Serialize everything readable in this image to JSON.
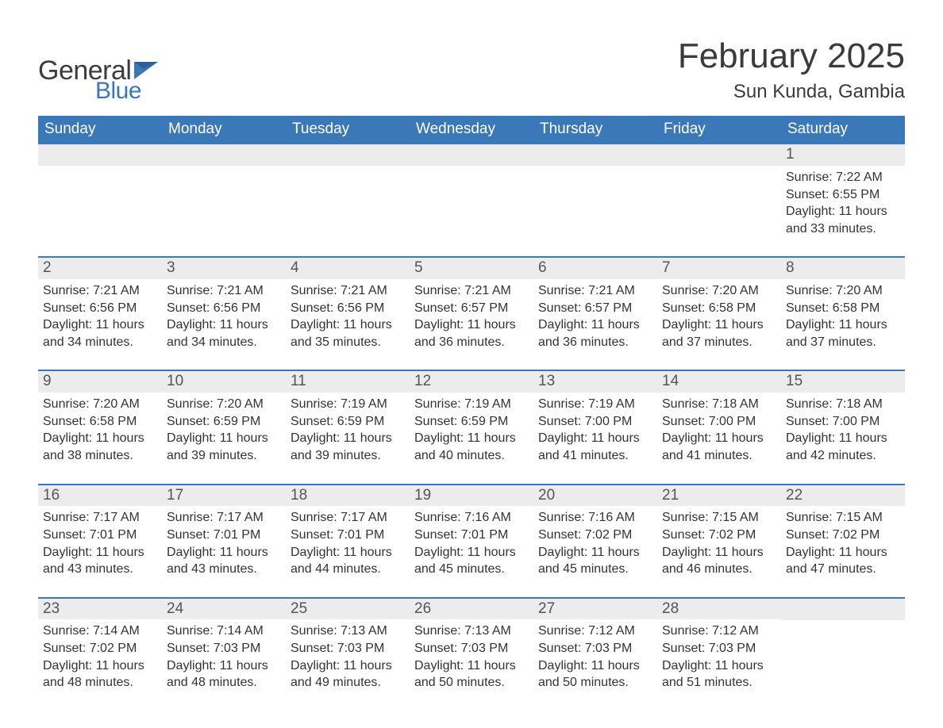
{
  "logo": {
    "text_left": "General",
    "text_right": "Blue",
    "flag_color": "#3a78b8",
    "text_left_color": "#3b3b3b",
    "text_right_color": "#3a78b8"
  },
  "title": "February 2025",
  "location": "Sun Kunda, Gambia",
  "colors": {
    "header_bar": "#3a78b8",
    "header_text": "#ffffff",
    "row_separator": "#3a78b8",
    "date_strip_bg": "#ececec",
    "date_text": "#555555",
    "body_text": "#333333",
    "page_bg": "#ffffff"
  },
  "typography": {
    "title_fontsize_pt": 33,
    "location_fontsize_pt": 18,
    "dow_fontsize_pt": 14,
    "date_fontsize_pt": 14,
    "body_fontsize_pt": 12,
    "font_family": "Helvetica"
  },
  "days_of_week": [
    "Sunday",
    "Monday",
    "Tuesday",
    "Wednesday",
    "Thursday",
    "Friday",
    "Saturday"
  ],
  "leading_blanks": 6,
  "days": [
    {
      "n": "1",
      "sunrise": "Sunrise: 7:22 AM",
      "sunset": "Sunset: 6:55 PM",
      "daylight": "Daylight: 11 hours and 33 minutes."
    },
    {
      "n": "2",
      "sunrise": "Sunrise: 7:21 AM",
      "sunset": "Sunset: 6:56 PM",
      "daylight": "Daylight: 11 hours and 34 minutes."
    },
    {
      "n": "3",
      "sunrise": "Sunrise: 7:21 AM",
      "sunset": "Sunset: 6:56 PM",
      "daylight": "Daylight: 11 hours and 34 minutes."
    },
    {
      "n": "4",
      "sunrise": "Sunrise: 7:21 AM",
      "sunset": "Sunset: 6:56 PM",
      "daylight": "Daylight: 11 hours and 35 minutes."
    },
    {
      "n": "5",
      "sunrise": "Sunrise: 7:21 AM",
      "sunset": "Sunset: 6:57 PM",
      "daylight": "Daylight: 11 hours and 36 minutes."
    },
    {
      "n": "6",
      "sunrise": "Sunrise: 7:21 AM",
      "sunset": "Sunset: 6:57 PM",
      "daylight": "Daylight: 11 hours and 36 minutes."
    },
    {
      "n": "7",
      "sunrise": "Sunrise: 7:20 AM",
      "sunset": "Sunset: 6:58 PM",
      "daylight": "Daylight: 11 hours and 37 minutes."
    },
    {
      "n": "8",
      "sunrise": "Sunrise: 7:20 AM",
      "sunset": "Sunset: 6:58 PM",
      "daylight": "Daylight: 11 hours and 37 minutes."
    },
    {
      "n": "9",
      "sunrise": "Sunrise: 7:20 AM",
      "sunset": "Sunset: 6:58 PM",
      "daylight": "Daylight: 11 hours and 38 minutes."
    },
    {
      "n": "10",
      "sunrise": "Sunrise: 7:20 AM",
      "sunset": "Sunset: 6:59 PM",
      "daylight": "Daylight: 11 hours and 39 minutes."
    },
    {
      "n": "11",
      "sunrise": "Sunrise: 7:19 AM",
      "sunset": "Sunset: 6:59 PM",
      "daylight": "Daylight: 11 hours and 39 minutes."
    },
    {
      "n": "12",
      "sunrise": "Sunrise: 7:19 AM",
      "sunset": "Sunset: 6:59 PM",
      "daylight": "Daylight: 11 hours and 40 minutes."
    },
    {
      "n": "13",
      "sunrise": "Sunrise: 7:19 AM",
      "sunset": "Sunset: 7:00 PM",
      "daylight": "Daylight: 11 hours and 41 minutes."
    },
    {
      "n": "14",
      "sunrise": "Sunrise: 7:18 AM",
      "sunset": "Sunset: 7:00 PM",
      "daylight": "Daylight: 11 hours and 41 minutes."
    },
    {
      "n": "15",
      "sunrise": "Sunrise: 7:18 AM",
      "sunset": "Sunset: 7:00 PM",
      "daylight": "Daylight: 11 hours and 42 minutes."
    },
    {
      "n": "16",
      "sunrise": "Sunrise: 7:17 AM",
      "sunset": "Sunset: 7:01 PM",
      "daylight": "Daylight: 11 hours and 43 minutes."
    },
    {
      "n": "17",
      "sunrise": "Sunrise: 7:17 AM",
      "sunset": "Sunset: 7:01 PM",
      "daylight": "Daylight: 11 hours and 43 minutes."
    },
    {
      "n": "18",
      "sunrise": "Sunrise: 7:17 AM",
      "sunset": "Sunset: 7:01 PM",
      "daylight": "Daylight: 11 hours and 44 minutes."
    },
    {
      "n": "19",
      "sunrise": "Sunrise: 7:16 AM",
      "sunset": "Sunset: 7:01 PM",
      "daylight": "Daylight: 11 hours and 45 minutes."
    },
    {
      "n": "20",
      "sunrise": "Sunrise: 7:16 AM",
      "sunset": "Sunset: 7:02 PM",
      "daylight": "Daylight: 11 hours and 45 minutes."
    },
    {
      "n": "21",
      "sunrise": "Sunrise: 7:15 AM",
      "sunset": "Sunset: 7:02 PM",
      "daylight": "Daylight: 11 hours and 46 minutes."
    },
    {
      "n": "22",
      "sunrise": "Sunrise: 7:15 AM",
      "sunset": "Sunset: 7:02 PM",
      "daylight": "Daylight: 11 hours and 47 minutes."
    },
    {
      "n": "23",
      "sunrise": "Sunrise: 7:14 AM",
      "sunset": "Sunset: 7:02 PM",
      "daylight": "Daylight: 11 hours and 48 minutes."
    },
    {
      "n": "24",
      "sunrise": "Sunrise: 7:14 AM",
      "sunset": "Sunset: 7:03 PM",
      "daylight": "Daylight: 11 hours and 48 minutes."
    },
    {
      "n": "25",
      "sunrise": "Sunrise: 7:13 AM",
      "sunset": "Sunset: 7:03 PM",
      "daylight": "Daylight: 11 hours and 49 minutes."
    },
    {
      "n": "26",
      "sunrise": "Sunrise: 7:13 AM",
      "sunset": "Sunset: 7:03 PM",
      "daylight": "Daylight: 11 hours and 50 minutes."
    },
    {
      "n": "27",
      "sunrise": "Sunrise: 7:12 AM",
      "sunset": "Sunset: 7:03 PM",
      "daylight": "Daylight: 11 hours and 50 minutes."
    },
    {
      "n": "28",
      "sunrise": "Sunrise: 7:12 AM",
      "sunset": "Sunset: 7:03 PM",
      "daylight": "Daylight: 11 hours and 51 minutes."
    }
  ]
}
